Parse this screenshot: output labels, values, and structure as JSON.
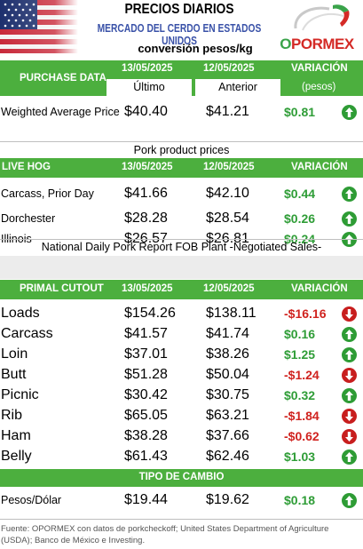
{
  "header": {
    "title": "PRECIOS DIARIOS",
    "subtitle": "MERCADO DEL CERDO EN ESTADOS UNIDOS",
    "conversion": "conversión pesos/kg",
    "logo_text_first": "O",
    "logo_text_rest": "PORMEX"
  },
  "purchase": {
    "label": "PURCHASE DATA",
    "date1": "13/05/2025",
    "date2": "12/05/2025",
    "var_label": "VARIACIÓN",
    "sub1": "Último",
    "sub2": "Anterior",
    "sub3": "(pesos)",
    "rows": [
      {
        "label": "Weighted Average Price",
        "v1": "$40.40",
        "v2": "$41.21",
        "var": "$0.81",
        "dir": "up"
      }
    ]
  },
  "pork": {
    "title": "Pork product prices",
    "label": "LIVE HOG",
    "date1": "13/05/2025",
    "date2": "12/05/2025",
    "var_label": "VARIACIÓN",
    "rows": [
      {
        "label": "Carcass, Prior Day",
        "v1": "$41.66",
        "v2": "$42.10",
        "var": "$0.44",
        "dir": "up"
      },
      {
        "label": "Dorchester",
        "v1": "$28.28",
        "v2": "$28.54",
        "var": "$0.26",
        "dir": "up"
      },
      {
        "label": "Illinois",
        "v1": "$26.57",
        "v2": "$26.81",
        "var": "$0.24",
        "dir": "up"
      }
    ]
  },
  "fob": {
    "title": "National Daily Pork Report FOB Plant -Negotiated Sales-",
    "label": "PRIMAL CUTOUT",
    "date1": "13/05/2025",
    "date2": "12/05/2025",
    "var_label": "VARIACIÓN",
    "rows": [
      {
        "label": "Loads",
        "v1": "$154.26",
        "v2": "$138.11",
        "var": "-$16.16",
        "dir": "down"
      },
      {
        "label": "Carcass",
        "v1": "$41.57",
        "v2": "$41.74",
        "var": "$0.16",
        "dir": "up"
      },
      {
        "label": "Loin",
        "v1": "$37.01",
        "v2": "$38.26",
        "var": "$1.25",
        "dir": "up"
      },
      {
        "label": "Butt",
        "v1": "$51.28",
        "v2": "$50.04",
        "var": "-$1.24",
        "dir": "down"
      },
      {
        "label": "Picnic",
        "v1": "$30.42",
        "v2": "$30.75",
        "var": "$0.32",
        "dir": "up"
      },
      {
        "label": "Rib",
        "v1": "$65.05",
        "v2": "$63.21",
        "var": "-$1.84",
        "dir": "down"
      },
      {
        "label": "Ham",
        "v1": "$38.28",
        "v2": "$37.66",
        "var": "-$0.62",
        "dir": "down"
      },
      {
        "label": "Belly",
        "v1": "$61.43",
        "v2": "$62.46",
        "var": "$1.03",
        "dir": "up"
      }
    ]
  },
  "fx": {
    "label": "TIPO DE CAMBIO",
    "rows": [
      {
        "label": "Pesos/Dólar",
        "v1": "$19.44",
        "v2": "$19.62",
        "var": "$0.18",
        "dir": "up"
      }
    ]
  },
  "footer": "Fuente: OPORMEX con datos de porkcheckoff; United States Department of Agriculture (USDA); Banco de México e Investing.",
  "colors": {
    "green": "#4caf3e",
    "up": "#2f9d37",
    "down": "#d0231f",
    "subtitle_blue": "#3a52a8"
  }
}
